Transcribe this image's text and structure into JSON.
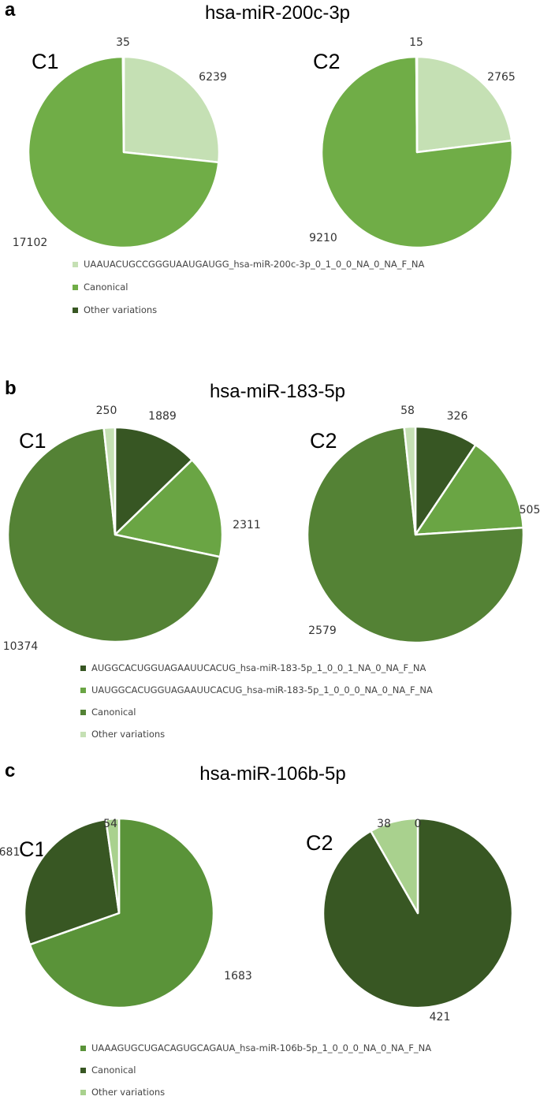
{
  "chart_data": [
    {
      "type": "pie",
      "panel": "a",
      "title": "hsa-miR-200c-3p",
      "legend": [
        {
          "label": "UAAUACUGCCGGGUAAUGAUGG_hsa-miR-200c-3p_0_1_0_0_NA_0_NA_F_NA",
          "color": "#c5e0b4"
        },
        {
          "label": "Canonical",
          "color": "#70ad47"
        },
        {
          "label": "Other variations",
          "color": "#385723"
        }
      ],
      "pies": [
        {
          "name": "C1",
          "slices": [
            {
              "category": "UAAUACUGCCGGGUAAUGAUGG_hsa-miR-200c-3p_0_1_0_0_NA_0_NA_F_NA",
              "value": 6239
            },
            {
              "category": "Canonical",
              "value": 17102
            },
            {
              "category": "Other variations",
              "value": 35
            }
          ]
        },
        {
          "name": "C2",
          "slices": [
            {
              "category": "UAAUACUGCCGGGUAAUGAUGG_hsa-miR-200c-3p_0_1_0_0_NA_0_NA_F_NA",
              "value": 2765
            },
            {
              "category": "Canonical",
              "value": 9210
            },
            {
              "category": "Other variations",
              "value": 15
            }
          ]
        }
      ]
    },
    {
      "type": "pie",
      "panel": "b",
      "title": "hsa-miR-183-5p",
      "legend": [
        {
          "label": "AUGGCACUGGUAGAAUUCACUG_hsa-miR-183-5p_1_0_0_1_NA_0_NA_F_NA",
          "color": "#375623"
        },
        {
          "label": "UAUGGCACUGGUAGAAUUCACUG_hsa-miR-183-5p_1_0_0_0_NA_0_NA_F_NA",
          "color": "#6aa544"
        },
        {
          "label": "Canonical",
          "color": "#548235"
        },
        {
          "label": "Other variations",
          "color": "#c5e0b4"
        }
      ],
      "pies": [
        {
          "name": "C1",
          "slices": [
            {
              "category": "AUGGCACUGGUAGAAUUCACUG_hsa-miR-183-5p_1_0_0_1_NA_0_NA_F_NA",
              "value": 1889
            },
            {
              "category": "UAUGGCACUGGUAGAAUUCACUG_hsa-miR-183-5p_1_0_0_0_NA_0_NA_F_NA",
              "value": 2311
            },
            {
              "category": "Canonical",
              "value": 10374
            },
            {
              "category": "Other variations",
              "value": 250
            }
          ]
        },
        {
          "name": "C2",
          "slices": [
            {
              "category": "AUGGCACUGGUAGAAUUCACUG_hsa-miR-183-5p_1_0_0_1_NA_0_NA_F_NA",
              "value": 326
            },
            {
              "category": "UAUGGCACUGGUAGAAUUCACUG_hsa-miR-183-5p_1_0_0_0_NA_0_NA_F_NA",
              "value": 505
            },
            {
              "category": "Canonical",
              "value": 2579
            },
            {
              "category": "Other variations",
              "value": 58
            }
          ]
        }
      ]
    },
    {
      "type": "pie",
      "panel": "c",
      "title": "hsa-miR-106b-5p",
      "legend": [
        {
          "label": "UAAAGUGCUGACAGUGCAGAUA_hsa-miR-106b-5p_1_0_0_0_NA_0_NA_F_NA",
          "color": "#5a9339"
        },
        {
          "label": "Canonical",
          "color": "#385723"
        },
        {
          "label": "Other variations",
          "color": "#a9d18e"
        }
      ],
      "pies": [
        {
          "name": "C1",
          "slices": [
            {
              "category": "UAAAGUGCUGACAGUGCAGAUA_hsa-miR-106b-5p_1_0_0_0_NA_0_NA_F_NA",
              "value": 1683
            },
            {
              "category": "Canonical",
              "value": 681
            },
            {
              "category": "Other variations",
              "value": 54
            }
          ]
        },
        {
          "name": "C2",
          "slices": [
            {
              "category": "UAAAGUGCUGACAGUGCAGAUA_hsa-miR-106b-5p_1_0_0_0_NA_0_NA_F_NA",
              "value": 0
            },
            {
              "category": "Canonical",
              "value": 421
            },
            {
              "category": "Other variations",
              "value": 38
            }
          ]
        }
      ]
    }
  ]
}
